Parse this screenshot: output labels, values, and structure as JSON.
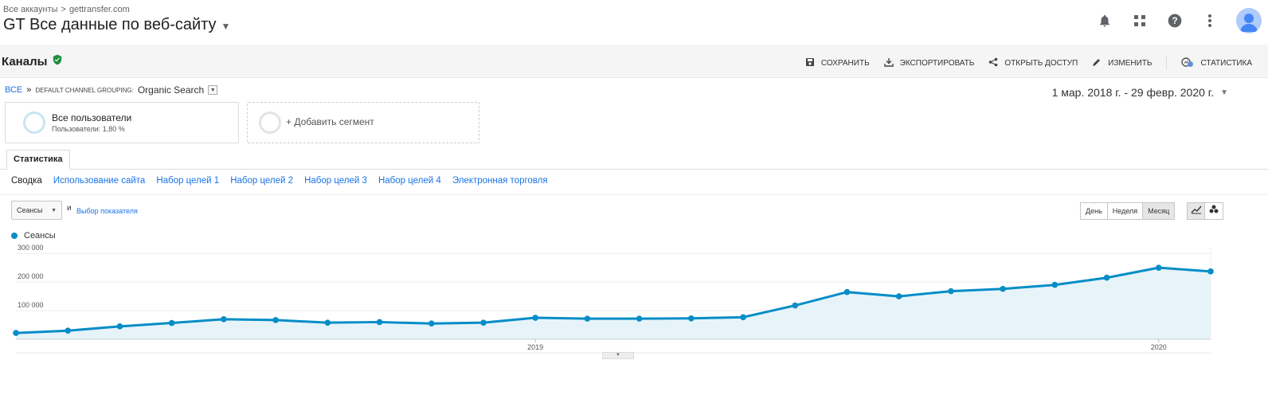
{
  "header": {
    "breadcrumb": [
      "Все аккаунты",
      "gettransfer.com"
    ],
    "breadcrumb_sep": ">",
    "view_title": "GT Все данные по веб-сайту"
  },
  "top_icons": [
    "bell-icon",
    "apps-grid-icon",
    "help-icon",
    "more-vert-icon",
    "avatar"
  ],
  "report": {
    "title": "Каналы",
    "verified_icon": "shield-check-icon",
    "accent_color": "#1e8e3e",
    "actions": [
      {
        "label": "СОХРАНИТЬ",
        "icon": "save-icon"
      },
      {
        "label": "ЭКСПОРТИРОВАТЬ",
        "icon": "download-icon"
      },
      {
        "label": "ОТКРЫТЬ ДОСТУП",
        "icon": "share-icon"
      },
      {
        "label": "ИЗМЕНИТЬ",
        "icon": "pencil-icon"
      },
      {
        "label": "СТАТИСТИКА",
        "icon": "insights-icon"
      }
    ]
  },
  "breadcrumb2": {
    "root": "ВСЕ",
    "sep": "»",
    "dimension": "DEFAULT CHANNEL GROUPING:",
    "value": "Organic Search"
  },
  "date_range": "1 мар. 2018 г. - 29 февр. 2020 г.",
  "segments": {
    "primary_name": "Все пользователи",
    "primary_sub": "Пользователи: 1,80 %",
    "add_label": "+ Добавить сегмент"
  },
  "tabs": {
    "active": "Статистика",
    "subnav": [
      "Сводка",
      "Использование сайта",
      "Набор целей 1",
      "Набор целей 2",
      "Набор целей 3",
      "Набор целей 4",
      "Электронная торговля"
    ]
  },
  "controls": {
    "metric": "Сеансы",
    "and": "и",
    "metric_link": "Выбор показателя",
    "granularity": [
      "День",
      "Неделя",
      "Месяц"
    ],
    "granularity_selected": "Месяц",
    "chart_types": [
      "line-chart-icon",
      "motion-chart-icon"
    ]
  },
  "chart_data": {
    "type": "area",
    "series": [
      {
        "name": "Сеансы",
        "color": "#058dc7",
        "values": [
          22000,
          30000,
          45000,
          57000,
          70000,
          67000,
          58000,
          60000,
          55000,
          58000,
          75000,
          72000,
          72000,
          73000,
          77000,
          118000,
          165000,
          150000,
          168000,
          176000,
          190000,
          215000,
          250000,
          237000
        ]
      }
    ],
    "x": [
      "2018-03",
      "2018-04",
      "2018-05",
      "2018-06",
      "2018-07",
      "2018-08",
      "2018-09",
      "2018-10",
      "2018-11",
      "2018-12",
      "2019-01",
      "2019-02",
      "2019-03",
      "2019-04",
      "2019-05",
      "2019-06",
      "2019-07",
      "2019-08",
      "2019-09",
      "2019-10",
      "2019-11",
      "2019-12",
      "2020-01",
      "2020-02"
    ],
    "x_tick_labels": [
      {
        "at": "2019-01",
        "label": "2019"
      },
      {
        "at": "2020-01",
        "label": "2020"
      }
    ],
    "y_tick_labels": [
      "100 000",
      "200 000",
      "300 000"
    ],
    "y_ticks": [
      100000,
      200000,
      300000
    ],
    "ylim": [
      0,
      320000
    ],
    "grid": true,
    "fill_color": "#e6f4fa"
  }
}
